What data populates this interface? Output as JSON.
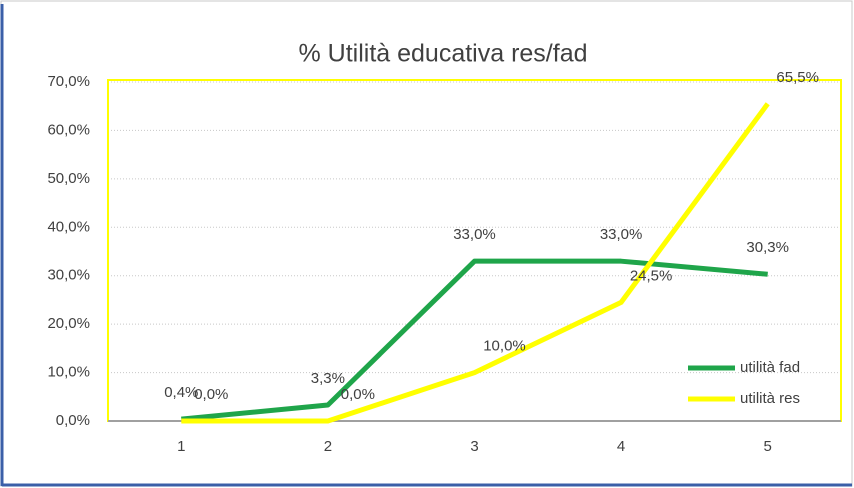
{
  "chart_data": {
    "type": "line",
    "title": "% Utilità educativa res/fad",
    "categories": [
      "1",
      "2",
      "3",
      "4",
      "5"
    ],
    "series": [
      {
        "name": "utilità fad",
        "color": "#1fa54a",
        "values": [
          0.4,
          3.3,
          33.0,
          33.0,
          30.3
        ],
        "value_labels": [
          "0,4%",
          "3,3%",
          "33,0%",
          "33,0%",
          "30,3%"
        ]
      },
      {
        "name": "utilità res",
        "color": "#ffff00",
        "values": [
          0.0,
          0.0,
          10.0,
          24.5,
          65.5
        ],
        "value_labels": [
          "0,0%",
          "0,0%",
          "10,0%",
          "24,5%",
          "65,5%"
        ]
      }
    ],
    "ylim": [
      0,
      70
    ],
    "yticks": [
      {
        "value": 0,
        "label": "0,0%"
      },
      {
        "value": 10,
        "label": "10,0%"
      },
      {
        "value": 20,
        "label": "20,0%"
      },
      {
        "value": 30,
        "label": "30,0%"
      },
      {
        "value": 40,
        "label": "40,0%"
      },
      {
        "value": 50,
        "label": "50,0%"
      },
      {
        "value": 60,
        "label": "60,0%"
      },
      {
        "value": 70,
        "label": "70,0%"
      }
    ],
    "grid": true,
    "legend": "right"
  }
}
